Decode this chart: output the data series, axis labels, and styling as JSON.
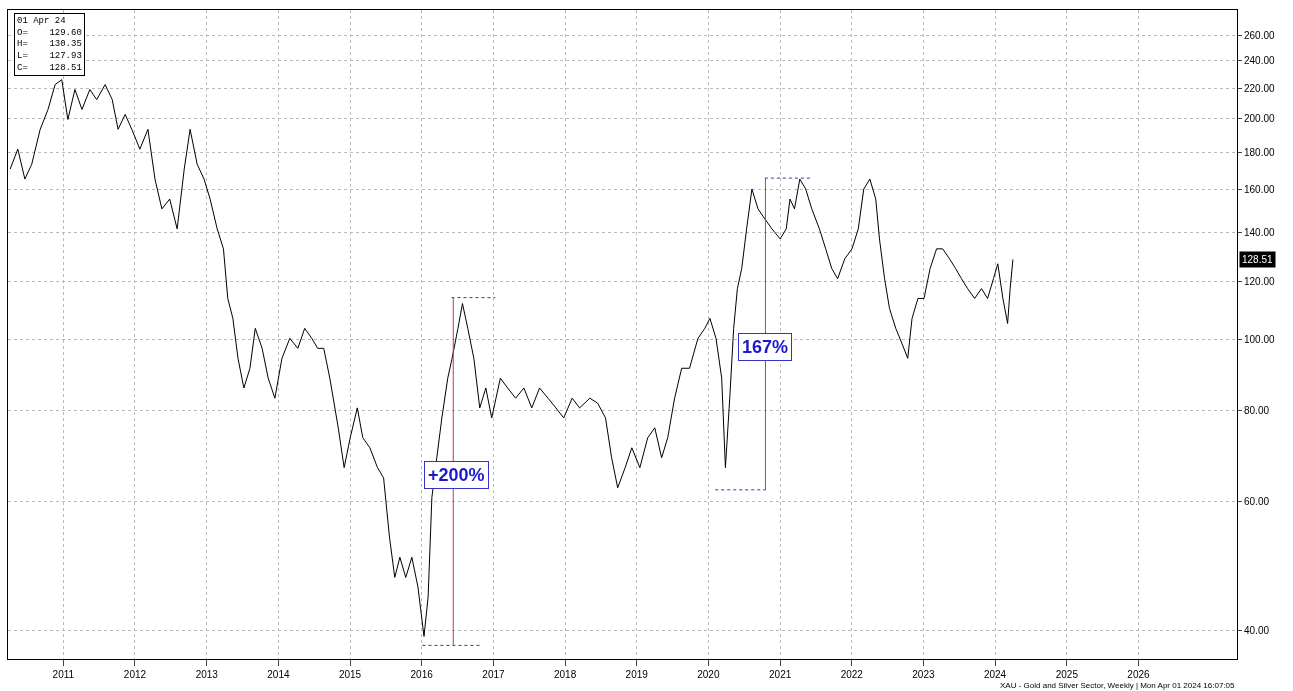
{
  "chart_data": {
    "type": "line",
    "log": "y",
    "grid": true,
    "marker": "none",
    "xlim": [
      "2010-03-25",
      "2027-05-18"
    ],
    "xticks": [
      "2011",
      "2012",
      "2013",
      "2014",
      "2015",
      "2016",
      "2017",
      "2018",
      "2019",
      "2020",
      "2021",
      "2022",
      "2023",
      "2024",
      "2025",
      "2026"
    ],
    "ylim": [
      36.6,
      281.6
    ],
    "yticks": [
      {
        "value": 40,
        "label": "40.00"
      },
      {
        "value": 60,
        "label": "60.00"
      },
      {
        "value": 80,
        "label": "80.00"
      },
      {
        "value": 100,
        "label": "100.00"
      },
      {
        "value": 120,
        "label": "120.00"
      },
      {
        "value": 140,
        "label": "140.00"
      },
      {
        "value": 160,
        "label": "160.00"
      },
      {
        "value": 180,
        "label": "180.00"
      },
      {
        "value": 200,
        "label": "200.00"
      },
      {
        "value": 220,
        "label": "220.00"
      },
      {
        "value": 240,
        "label": "240.00"
      },
      {
        "value": 260,
        "label": "260.00"
      }
    ],
    "series": [
      {
        "color": "#000000",
        "line_style": "solid",
        "x": [
          "2010-04-05",
          "2010-05-14",
          "2010-06-19",
          "2010-07-24",
          "2010-09-05",
          "2010-10-15",
          "2010-11-20",
          "2010-12-24",
          "2011-01-24",
          "2011-03-01",
          "2011-04-06",
          "2011-05-16",
          "2011-06-20",
          "2011-08-02",
          "2011-09-07",
          "2011-10-07",
          "2011-11-12",
          "2011-12-16",
          "2012-01-26",
          "2012-03-07",
          "2012-04-12",
          "2012-05-17",
          "2012-06-26",
          "2012-08-03",
          "2012-09-08",
          "2012-10-08",
          "2012-11-13",
          "2012-12-18",
          "2013-01-18",
          "2013-02-23",
          "2013-03-27",
          "2013-04-18",
          "2013-05-14",
          "2013-06-09",
          "2013-07-09",
          "2013-08-09",
          "2013-09-05",
          "2013-10-10",
          "2013-11-10",
          "2013-12-14",
          "2014-01-19",
          "2014-02-28",
          "2014-04-10",
          "2014-05-15",
          "2014-06-20",
          "2014-07-20",
          "2014-08-20",
          "2014-09-20",
          "2014-11-02",
          "2014-12-02",
          "2015-01-02",
          "2015-02-07",
          "2015-03-07",
          "2015-04-12",
          "2015-05-21",
          "2015-06-21",
          "2015-07-21",
          "2015-08-17",
          "2015-09-12",
          "2015-10-12",
          "2015-11-12",
          "2015-12-13",
          "2016-01-13",
          "2016-02-03",
          "2016-02-22",
          "2016-03-18",
          "2016-04-13",
          "2016-05-13",
          "2016-06-04",
          "2016-07-04",
          "2016-07-27",
          "2016-08-23",
          "2016-09-23",
          "2016-10-23",
          "2016-11-23",
          "2016-12-23",
          "2017-02-05",
          "2017-03-14",
          "2017-04-24",
          "2017-06-05",
          "2017-07-15",
          "2017-08-24",
          "2017-10-06",
          "2017-11-15",
          "2017-12-25",
          "2018-02-06",
          "2018-03-16",
          "2018-05-07",
          "2018-06-16",
          "2018-07-26",
          "2018-08-26",
          "2018-09-26",
          "2018-11-03",
          "2018-12-07",
          "2019-01-17",
          "2019-02-26",
          "2019-04-03",
          "2019-05-08",
          "2019-06-08",
          "2019-07-13",
          "2019-08-18",
          "2019-09-27",
          "2019-11-09",
          "2019-12-14",
          "2020-01-09",
          "2020-02-09",
          "2020-03-09",
          "2020-03-28",
          "2020-04-19",
          "2020-05-09",
          "2020-05-28",
          "2020-06-19",
          "2020-07-14",
          "2020-08-10",
          "2020-09-10",
          "2020-10-15",
          "2020-11-20",
          "2021-01-01",
          "2021-02-01",
          "2021-02-20",
          "2021-03-15",
          "2021-04-11",
          "2021-05-11",
          "2021-06-11",
          "2021-07-20",
          "2021-08-21",
          "2021-09-21",
          "2021-10-21",
          "2021-11-26",
          "2022-01-02",
          "2022-02-03",
          "2022-03-03",
          "2022-04-03",
          "2022-05-03",
          "2022-05-22",
          "2022-06-17",
          "2022-07-12",
          "2022-08-13",
          "2022-09-13",
          "2022-10-13",
          "2022-11-04",
          "2022-12-04",
          "2023-01-04",
          "2023-02-04",
          "2023-03-09",
          "2023-04-09",
          "2023-05-14",
          "2023-06-14",
          "2023-07-14",
          "2023-08-14",
          "2023-09-19",
          "2023-10-24",
          "2023-11-24",
          "2023-12-24",
          "2024-01-15",
          "2024-02-10",
          "2024-03-05",
          "2024-03-18",
          "2024-04-01"
        ],
        "values": [
          170.8,
          181.8,
          165.5,
          173.4,
          193.5,
          206.0,
          222.7,
          226.2,
          199.6,
          219.3,
          206.0,
          219.3,
          212.5,
          222.7,
          212.5,
          193.5,
          202.8,
          193.5,
          181.8,
          193.5,
          165.5,
          150.7,
          155.4,
          141.5,
          170.8,
          193.5,
          173.4,
          165.5,
          155.4,
          141.5,
          132.9,
          113.7,
          106.8,
          94.2,
          85.8,
          91.3,
          103.5,
          97.2,
          88.5,
          83.1,
          94.2,
          100.3,
          97.2,
          103.5,
          100.3,
          97.2,
          97.2,
          88.5,
          75.7,
          66.8,
          73.4,
          80.6,
          73.4,
          71.1,
          66.8,
          64.7,
          53.7,
          47.3,
          50.4,
          47.3,
          50.4,
          45.9,
          39.3,
          44.5,
          60.8,
          68.9,
          78.1,
          88.5,
          94.2,
          103.5,
          111.9,
          103.5,
          94.2,
          80.6,
          85.8,
          78.1,
          88.5,
          85.8,
          83.1,
          85.8,
          80.6,
          85.8,
          83.1,
          80.6,
          78.1,
          83.1,
          80.6,
          83.1,
          81.8,
          78.1,
          68.9,
          62.7,
          66.8,
          71.1,
          66.8,
          73.4,
          75.7,
          68.9,
          73.4,
          83.1,
          91.3,
          91.3,
          100.3,
          103.5,
          106.8,
          100.3,
          88.5,
          66.8,
          83.1,
          103.5,
          117.3,
          124.9,
          141.5,
          160.4,
          150.7,
          146.0,
          141.5,
          137.1,
          141.5,
          155.4,
          150.7,
          165.5,
          160.4,
          150.7,
          141.5,
          132.9,
          124.9,
          121.0,
          128.8,
          132.9,
          141.5,
          160.4,
          165.5,
          155.4,
          137.1,
          121.0,
          110.2,
          103.5,
          98.8,
          94.2,
          106.8,
          113.7,
          113.7,
          124.9,
          132.9,
          132.9,
          128.8,
          124.9,
          121.0,
          117.3,
          113.7,
          117.3,
          113.7,
          121.0,
          126.8,
          113.7,
          105.1,
          117.3,
          128.51
        ]
      },
      {
        "color": "#3333cc",
        "line_style": "dotted",
        "x": [
          "2016-01-05",
          "2016-11-05"
        ],
        "values": [
          38.2,
          38.2
        ]
      },
      {
        "color": "#3333cc",
        "line_style": "dotted",
        "x": [
          "2016-06-01",
          "2017-01-10"
        ],
        "values": [
          114,
          114
        ]
      },
      {
        "color": "#cc3355",
        "line_style": "solid",
        "x": [
          "2016-06-10",
          "2016-06-10"
        ],
        "values": [
          38.2,
          114
        ]
      },
      {
        "color": "#3333cc",
        "line_style": "dotted",
        "x": [
          "2020-02-05",
          "2020-10-20"
        ],
        "values": [
          62.3,
          62.3
        ]
      },
      {
        "color": "#3333cc",
        "line_style": "dotted",
        "x": [
          "2020-10-15",
          "2021-06-15"
        ],
        "values": [
          166,
          166
        ]
      },
      {
        "color": "#cc3355",
        "line_style": "solid",
        "x": [
          "2020-10-18",
          "2020-10-18"
        ],
        "values": [
          62.3,
          166
        ]
      }
    ],
    "annotations": [
      "+200%",
      "167%",
      "128.51",
      "01 Apr 24\nO=    129.60\nH=    130.35\nL=    127.93\nC=    128.51",
      "XAU - Gold and Silver Sector, Weekly | Mon Apr 01 2024 16:07:05"
    ]
  }
}
